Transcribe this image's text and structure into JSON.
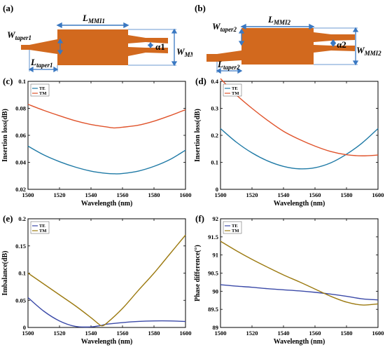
{
  "diagrams": [
    {
      "label": "(a)",
      "w_taper": "W",
      "w_taper_sub": "taper1",
      "l_mmi": "L",
      "l_mmi_sub": "MMI1",
      "l_taper": "L",
      "l_taper_sub": "taper1",
      "w_mmi": "W",
      "w_mmi_sub": "MMI1",
      "alpha": "α1"
    },
    {
      "label": "(b)",
      "w_taper": "W",
      "w_taper_sub": "taper2",
      "l_mmi": "L",
      "l_mmi_sub": "MMI2",
      "l_taper": "L",
      "l_taper_sub": "taper2",
      "w_mmi": "W",
      "w_mmi_sub": "MMI2",
      "alpha": "α2"
    }
  ],
  "colors": {
    "device": "#d2691e",
    "dim": "#3a78c2",
    "te_cd": "#1f7aa6",
    "tm_cd": "#e0532b",
    "te_ef": "#3b4aa8",
    "tm_ef": "#9c7a10"
  },
  "chart_data": [
    {
      "label": "(c)",
      "type": "line",
      "xlabel": "Wavelength (nm)",
      "ylabel": "Insertion loss(dB)",
      "xlim": [
        1500,
        1600
      ],
      "ylim": [
        0.02,
        0.1
      ],
      "xticks": [
        "1500",
        "1520",
        "1540",
        "1560",
        "1580",
        "1600"
      ],
      "yticks": [
        "0.02",
        "0.04",
        "0.06",
        "0.08",
        "0.1"
      ],
      "x": [
        1500,
        1510,
        1520,
        1530,
        1540,
        1550,
        1555,
        1560,
        1570,
        1580,
        1590,
        1600
      ],
      "series": [
        {
          "name": "TE",
          "color": "#1f7aa6",
          "values": [
            0.052,
            0.0455,
            0.0405,
            0.0365,
            0.0335,
            0.0318,
            0.0315,
            0.0317,
            0.0335,
            0.037,
            0.042,
            0.049
          ]
        },
        {
          "name": "TM",
          "color": "#e0532b",
          "values": [
            0.083,
            0.0785,
            0.0745,
            0.0708,
            0.068,
            0.0662,
            0.0655,
            0.066,
            0.0675,
            0.0705,
            0.0745,
            0.079
          ]
        }
      ]
    },
    {
      "label": "(d)",
      "type": "line",
      "xlabel": "Wavelength (nm)",
      "ylabel": "Insertion loss(dB)",
      "xlim": [
        1500,
        1600
      ],
      "ylim": [
        0,
        0.4
      ],
      "xticks": [
        "1500",
        "1520",
        "1540",
        "1560",
        "1580",
        "1600"
      ],
      "yticks": [
        "0",
        "0.1",
        "0.2",
        "0.3",
        "0.4"
      ],
      "x": [
        1500,
        1510,
        1520,
        1530,
        1540,
        1550,
        1560,
        1570,
        1580,
        1590,
        1600
      ],
      "series": [
        {
          "name": "TE",
          "color": "#1f7aa6",
          "values": [
            0.225,
            0.175,
            0.135,
            0.105,
            0.085,
            0.076,
            0.08,
            0.098,
            0.13,
            0.172,
            0.225
          ]
        },
        {
          "name": "TM",
          "color": "#e0532b",
          "values": [
            0.41,
            0.35,
            0.3,
            0.255,
            0.215,
            0.185,
            0.16,
            0.14,
            0.128,
            0.124,
            0.127
          ]
        }
      ]
    },
    {
      "label": "(e)",
      "type": "line",
      "xlabel": "Wavelength (nm)",
      "ylabel": "Imbalance(dB)",
      "xlim": [
        1500,
        1600
      ],
      "ylim": [
        0,
        0.2
      ],
      "xticks": [
        "1500",
        "1520",
        "1540",
        "1560",
        "1580",
        "1600"
      ],
      "yticks": [
        "0",
        "0.05",
        "0.1",
        "0.15",
        "0.2"
      ],
      "x": [
        1500,
        1510,
        1520,
        1530,
        1540,
        1545,
        1547,
        1550,
        1560,
        1570,
        1580,
        1590,
        1600
      ],
      "series": [
        {
          "name": "TE",
          "color": "#3b4aa8",
          "values": [
            0.055,
            0.03,
            0.012,
            0.002,
            0.001,
            0.003,
            0.004,
            0.006,
            0.009,
            0.011,
            0.012,
            0.012,
            0.011
          ]
        },
        {
          "name": "TM",
          "color": "#9c7a10",
          "values": [
            0.1,
            0.08,
            0.06,
            0.04,
            0.018,
            0.006,
            0.003,
            0.008,
            0.035,
            0.068,
            0.1,
            0.135,
            0.17
          ]
        }
      ]
    },
    {
      "label": "(f)",
      "type": "line",
      "xlabel": "Wavelength (nm)",
      "ylabel": "Phase difference(°)",
      "xlim": [
        1500,
        1600
      ],
      "ylim": [
        89,
        92
      ],
      "xticks": [
        "1500",
        "1520",
        "1540",
        "1560",
        "1580",
        "1600"
      ],
      "yticks": [
        "89",
        "89.5",
        "90",
        "90.5",
        "91",
        "91.5",
        "92"
      ],
      "x": [
        1500,
        1510,
        1520,
        1530,
        1540,
        1550,
        1560,
        1570,
        1580,
        1590,
        1600
      ],
      "series": [
        {
          "name": "TE",
          "color": "#3b4aa8",
          "values": [
            90.18,
            90.14,
            90.11,
            90.07,
            90.04,
            90.01,
            89.97,
            89.92,
            89.86,
            89.79,
            89.76
          ]
        },
        {
          "name": "TM",
          "color": "#9c7a10",
          "values": [
            91.38,
            91.12,
            90.88,
            90.66,
            90.45,
            90.26,
            90.06,
            89.86,
            89.7,
            89.62,
            89.65
          ]
        }
      ]
    }
  ]
}
